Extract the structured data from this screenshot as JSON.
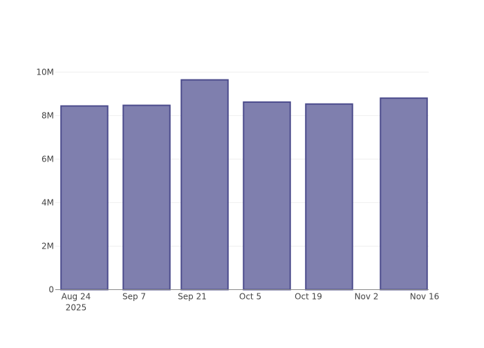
{
  "chart_data": {
    "type": "bar",
    "title": "",
    "xlabel": "",
    "ylabel": "",
    "x": [
      "2025-08-26",
      "2025-09-10",
      "2025-09-24",
      "2025-10-09",
      "2025-10-24",
      "2025-11-11"
    ],
    "values": [
      8440000,
      8470000,
      9640000,
      8620000,
      8530000,
      8800000
    ],
    "xlim": [
      "2025-08-19",
      "2025-11-17"
    ],
    "ylim": [
      0,
      10150000
    ],
    "x_ticks": [
      {
        "date": "2025-08-24",
        "label": "Aug 24",
        "sublabel": "2025"
      },
      {
        "date": "2025-09-07",
        "label": "Sep 7"
      },
      {
        "date": "2025-09-21",
        "label": "Sep 21"
      },
      {
        "date": "2025-10-05",
        "label": "Oct 5"
      },
      {
        "date": "2025-10-19",
        "label": "Oct 19"
      },
      {
        "date": "2025-11-02",
        "label": "Nov 2"
      },
      {
        "date": "2025-11-16",
        "label": "Nov 16"
      }
    ],
    "y_ticks": [
      {
        "value": 0,
        "label": "0"
      },
      {
        "value": 2000000,
        "label": "2M"
      },
      {
        "value": 4000000,
        "label": "4M"
      },
      {
        "value": 6000000,
        "label": "6M"
      },
      {
        "value": 8000000,
        "label": "8M"
      },
      {
        "value": 10000000,
        "label": "10M"
      }
    ],
    "grid": true,
    "legend": "none",
    "colors": {
      "bar_fill": "#7f7fae",
      "bar_stroke": "#4b4b8c",
      "grid": "#eeeeee",
      "axis": "#888888"
    }
  }
}
